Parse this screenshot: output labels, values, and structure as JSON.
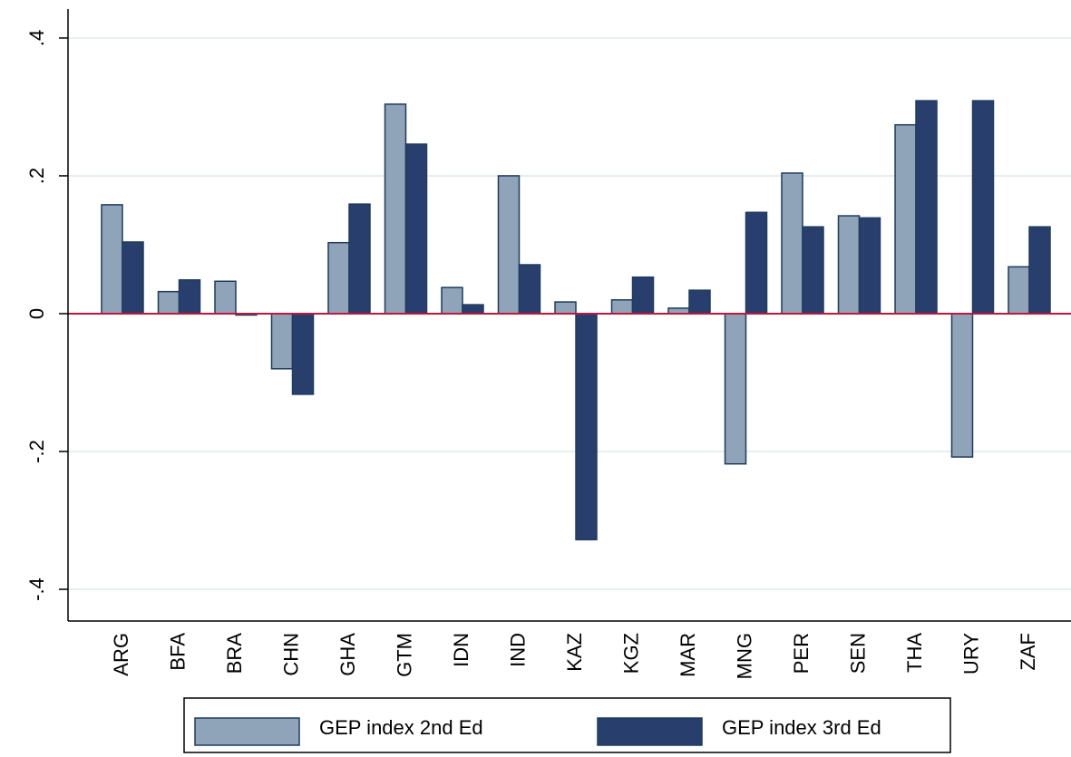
{
  "chart_data": {
    "type": "bar",
    "categories": [
      "ARG",
      "BFA",
      "BRA",
      "CHN",
      "GHA",
      "GTM",
      "IDN",
      "IND",
      "KAZ",
      "KGZ",
      "MAR",
      "MNG",
      "PER",
      "SEN",
      "THA",
      "URY",
      "ZAF"
    ],
    "series": [
      {
        "name": "GEP index 2nd Ed",
        "color": "#8fa3b9",
        "values": [
          0.158,
          0.032,
          0.047,
          -0.08,
          0.103,
          0.304,
          0.038,
          0.2,
          0.017,
          0.02,
          0.008,
          -0.218,
          0.204,
          0.142,
          0.274,
          -0.208,
          0.068
        ]
      },
      {
        "name": "GEP index 3rd Ed",
        "color": "#283f6e",
        "values": [
          0.104,
          0.049,
          -0.002,
          -0.117,
          0.159,
          0.246,
          0.013,
          0.071,
          -0.328,
          0.053,
          0.034,
          0.147,
          0.126,
          0.139,
          0.309,
          0.309,
          0.126
        ]
      }
    ],
    "ylim": [
      -0.446,
      0.442
    ],
    "yticks": [
      {
        "value": -0.4,
        "label": "-.4"
      },
      {
        "value": -0.2,
        "label": "-.2"
      },
      0,
      {
        "value": 0.2,
        "label": ".2"
      },
      {
        "value": 0.4,
        "label": ".4"
      }
    ],
    "grid": true,
    "yline": 0,
    "legend": "bottom"
  }
}
